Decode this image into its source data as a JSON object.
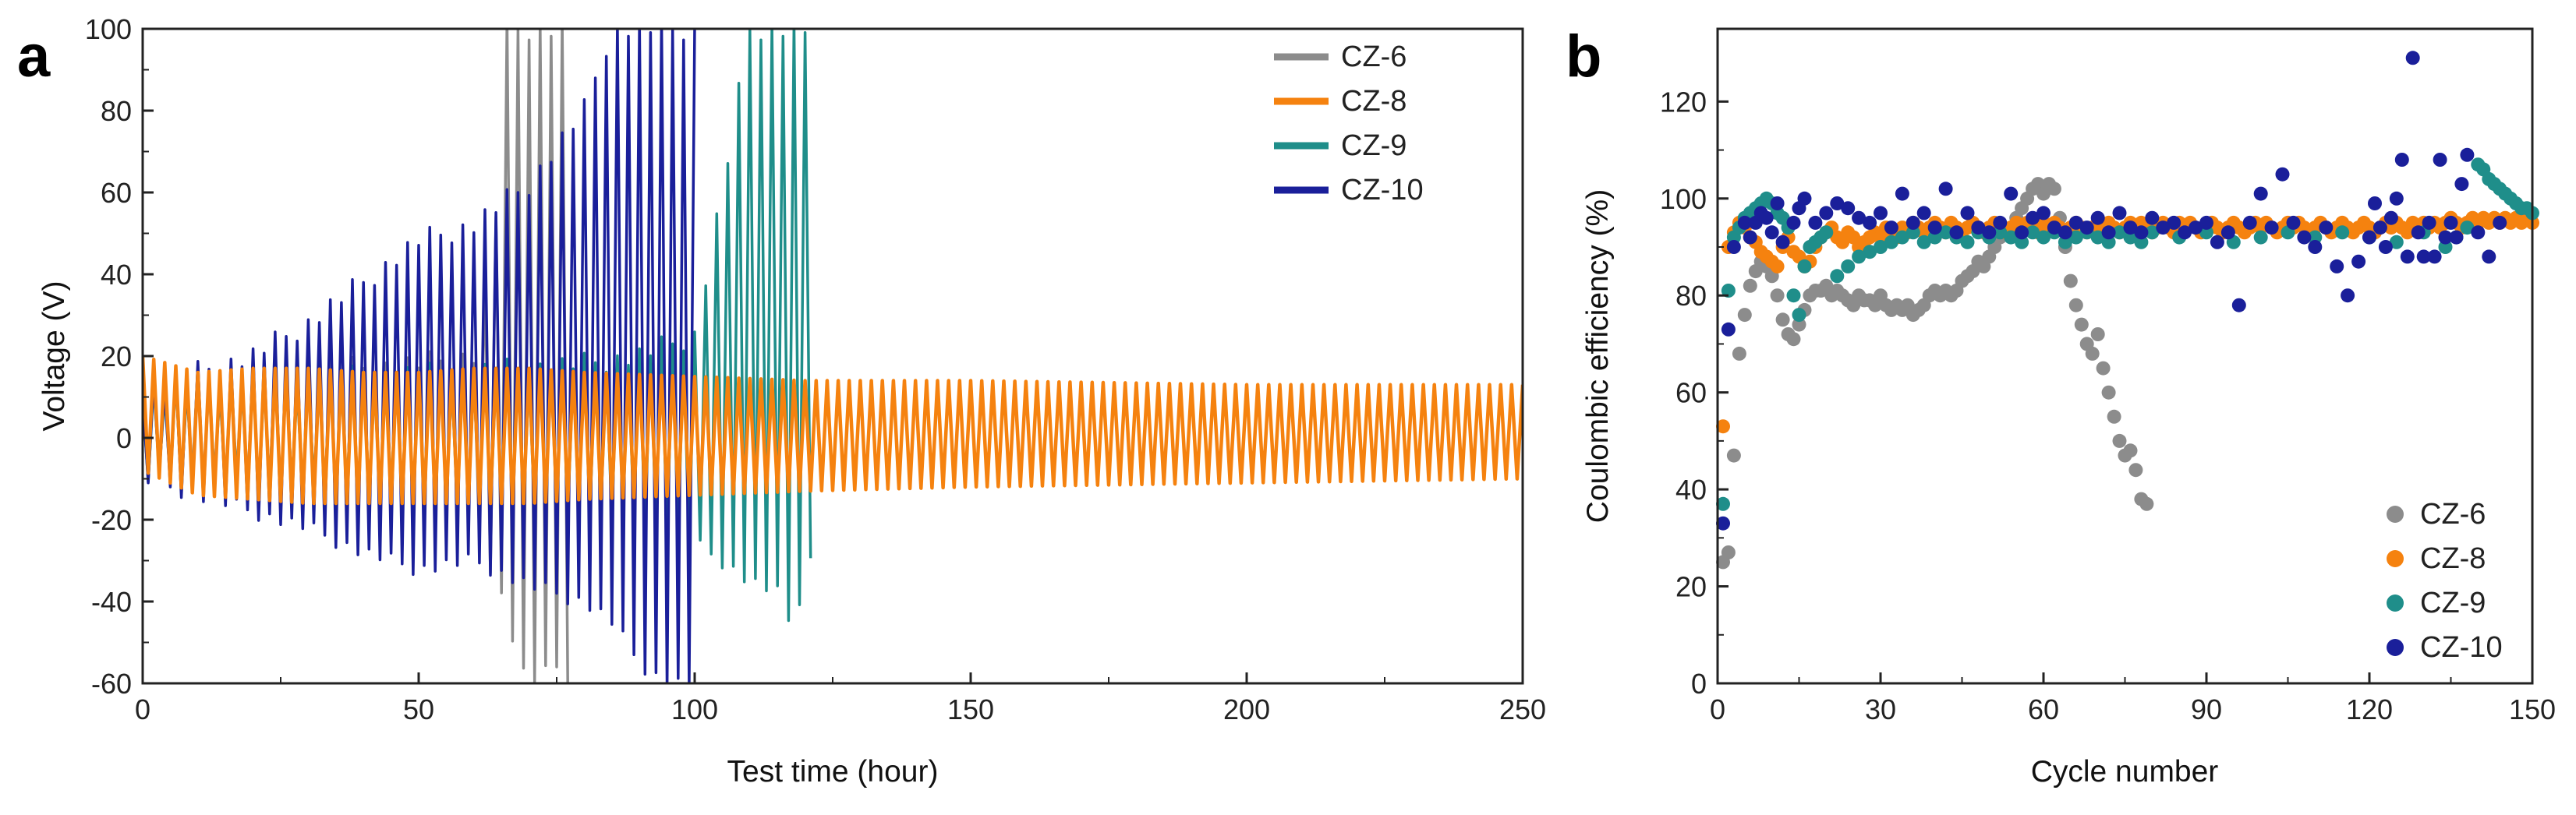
{
  "chart_data": [
    {
      "panel": "a",
      "type": "line",
      "title": "",
      "xlabel": "Test time (hour)",
      "ylabel": "Voltage (V)",
      "xlim": [
        0,
        250
      ],
      "ylim": [
        -60,
        100
      ],
      "xticks": [
        0,
        50,
        100,
        150,
        200,
        250
      ],
      "yticks": [
        -60,
        -40,
        -20,
        0,
        20,
        40,
        60,
        80,
        100
      ],
      "grid": false,
      "legend": "top-right",
      "series": [
        {
          "name": "CZ-6",
          "color": "#8c8c8c",
          "t": [
            0,
            10,
            20,
            30,
            40,
            50,
            60,
            64,
            66,
            68,
            70,
            72,
            74,
            76,
            77
          ],
          "upper": [
            14,
            15,
            16,
            17,
            17,
            18,
            20,
            55,
            100,
            100,
            100,
            100,
            100,
            100,
            100
          ],
          "lower": [
            -8,
            -10,
            -12,
            -14,
            -15,
            -16,
            -20,
            -35,
            -42,
            -55,
            -60,
            -58,
            -57,
            -55,
            -58
          ],
          "period_h": 2.0,
          "end_h": 77
        },
        {
          "name": "CZ-8",
          "color": "#f5820f",
          "t": [
            0,
            10,
            20,
            30,
            40,
            50,
            60,
            70,
            80,
            100,
            120,
            150,
            200,
            250
          ],
          "upper": [
            20,
            16,
            17,
            17,
            16,
            16,
            17,
            17,
            16,
            15,
            14,
            14,
            13,
            13
          ],
          "lower": [
            -8,
            -14,
            -15,
            -16,
            -16,
            -16,
            -16,
            -16,
            -15,
            -14,
            -13,
            -12,
            -11,
            -10
          ],
          "period_h": 2.0,
          "end_h": 250
        },
        {
          "name": "CZ-9",
          "color": "#1f8e8a",
          "t": [
            0,
            20,
            40,
            60,
            80,
            90,
            100,
            105,
            110,
            115,
            118,
            120,
            121
          ],
          "upper": [
            12,
            14,
            15,
            16,
            18,
            20,
            25,
            60,
            100,
            100,
            100,
            100,
            100
          ],
          "lower": [
            -10,
            -12,
            -14,
            -16,
            -18,
            -20,
            -26,
            -30,
            -35,
            -38,
            -48,
            -30,
            -30
          ],
          "period_h": 2.0,
          "end_h": 121
        },
        {
          "name": "CZ-10",
          "color": "#1a1f9a",
          "t": [
            0,
            10,
            20,
            30,
            40,
            50,
            60,
            70,
            80,
            85,
            90,
            95,
            100
          ],
          "upper": [
            13,
            16,
            20,
            28,
            38,
            48,
            52,
            62,
            80,
            100,
            100,
            100,
            100
          ],
          "lower": [
            -10,
            -14,
            -18,
            -22,
            -28,
            -32,
            -30,
            -36,
            -40,
            -45,
            -55,
            -60,
            -60
          ],
          "period_h": 2.0,
          "end_h": 100
        }
      ]
    },
    {
      "panel": "b",
      "type": "scatter",
      "title": "",
      "xlabel": "Cycle number",
      "ylabel": "Coulombic efficiency (%)",
      "xlim": [
        0,
        150
      ],
      "ylim": [
        0,
        135
      ],
      "xticks": [
        0,
        30,
        60,
        90,
        120,
        150
      ],
      "yticks": [
        0,
        20,
        40,
        60,
        80,
        100,
        120
      ],
      "grid": false,
      "legend": "bottom-right",
      "series": [
        {
          "name": "CZ-6",
          "color": "#8c8c8c",
          "x": [
            1,
            2,
            3,
            4,
            5,
            6,
            7,
            8,
            9,
            10,
            11,
            12,
            13,
            14,
            15,
            16,
            17,
            18,
            19,
            20,
            21,
            22,
            23,
            24,
            25,
            26,
            27,
            28,
            29,
            30,
            31,
            32,
            33,
            34,
            35,
            36,
            37,
            38,
            39,
            40,
            41,
            42,
            43,
            44,
            45,
            46,
            47,
            48,
            49,
            50,
            51,
            52,
            53,
            54,
            55,
            56,
            57,
            58,
            59,
            60,
            61,
            62,
            63,
            64,
            65,
            66,
            67,
            68,
            69,
            70,
            71,
            72,
            73,
            74,
            75,
            76,
            77,
            78,
            79
          ],
          "y": [
            25,
            27,
            47,
            68,
            76,
            82,
            85,
            87,
            86,
            84,
            80,
            75,
            72,
            71,
            74,
            77,
            80,
            81,
            81,
            82,
            80,
            81,
            80,
            79,
            78,
            80,
            79,
            79,
            78,
            80,
            78,
            77,
            78,
            77,
            78,
            76,
            77,
            78,
            80,
            81,
            80,
            81,
            80,
            81,
            83,
            84,
            85,
            87,
            86,
            88,
            90,
            92,
            93,
            94,
            96,
            98,
            100,
            102,
            103,
            101,
            103,
            102,
            96,
            90,
            83,
            78,
            74,
            70,
            68,
            72,
            65,
            60,
            55,
            50,
            47,
            48,
            44,
            38,
            37
          ]
        },
        {
          "name": "CZ-8",
          "color": "#f5820f",
          "x": [
            1,
            2,
            3,
            4,
            5,
            6,
            7,
            8,
            9,
            10,
            11,
            12,
            13,
            14,
            15,
            16,
            17,
            18,
            19,
            20,
            21,
            22,
            23,
            24,
            25,
            26,
            27,
            28,
            29,
            30,
            31,
            32,
            33,
            34,
            35,
            36,
            37,
            38,
            39,
            40,
            41,
            42,
            43,
            44,
            45,
            46,
            47,
            48,
            49,
            50,
            51,
            52,
            53,
            54,
            55,
            56,
            57,
            58,
            59,
            60,
            61,
            62,
            63,
            64,
            65,
            66,
            67,
            68,
            69,
            70,
            71,
            72,
            73,
            74,
            75,
            76,
            77,
            78,
            79,
            80,
            81,
            82,
            83,
            84,
            85,
            86,
            87,
            88,
            89,
            90,
            91,
            92,
            93,
            94,
            95,
            96,
            97,
            98,
            99,
            100,
            101,
            102,
            103,
            104,
            105,
            106,
            107,
            108,
            109,
            110,
            111,
            112,
            113,
            114,
            115,
            116,
            117,
            118,
            119,
            120,
            121,
            122,
            123,
            124,
            125,
            126,
            127,
            128,
            129,
            130,
            131,
            132,
            133,
            134,
            135,
            136,
            137,
            138,
            139,
            140,
            141,
            142,
            143,
            144,
            145,
            146,
            147,
            148,
            149,
            150
          ],
          "y": [
            53,
            90,
            93,
            95,
            94,
            92,
            91,
            89,
            88,
            87,
            86,
            90,
            92,
            89,
            88,
            86,
            87,
            90,
            92,
            93,
            94,
            92,
            91,
            93,
            92,
            90,
            91,
            92,
            93,
            92,
            94,
            93,
            92,
            94,
            93,
            95,
            94,
            93,
            94,
            95,
            94,
            93,
            95,
            94,
            93,
            94,
            95,
            94,
            93,
            94,
            95,
            94,
            93,
            94,
            95,
            94,
            95,
            94,
            93,
            95,
            94,
            95,
            94,
            93,
            94,
            95,
            94,
            93,
            94,
            95,
            94,
            95,
            94,
            93,
            94,
            95,
            94,
            95,
            94,
            93,
            94,
            95,
            94,
            93,
            95,
            94,
            95,
            94,
            93,
            94,
            95,
            94,
            93,
            94,
            95,
            94,
            93,
            94,
            95,
            94,
            95,
            94,
            93,
            94,
            95,
            94,
            95,
            94,
            93,
            94,
            95,
            94,
            93,
            94,
            95,
            94,
            93,
            94,
            95,
            94,
            93,
            94,
            95,
            94,
            95,
            94,
            93,
            95,
            94,
            95,
            94,
            95,
            94,
            95,
            96,
            95,
            94,
            95,
            96,
            95,
            96,
            95,
            96,
            95,
            96,
            95,
            96,
            95,
            96,
            95
          ]
        },
        {
          "name": "CZ-9",
          "color": "#1f8e8a",
          "x": [
            1,
            2,
            3,
            4,
            5,
            6,
            7,
            8,
            9,
            10,
            11,
            12,
            13,
            14,
            15,
            16,
            17,
            18,
            19,
            20,
            22,
            24,
            26,
            28,
            30,
            32,
            34,
            36,
            38,
            40,
            42,
            44,
            46,
            48,
            50,
            52,
            54,
            56,
            58,
            60,
            62,
            64,
            66,
            68,
            70,
            72,
            74,
            76,
            78,
            80,
            85,
            90,
            95,
            100,
            105,
            110,
            115,
            120,
            125,
            130,
            134,
            136,
            138,
            140,
            141,
            142,
            143,
            144,
            145,
            146,
            147,
            148,
            149,
            150
          ],
          "y": [
            37,
            81,
            92,
            94,
            96,
            97,
            98,
            99,
            100,
            99,
            97,
            96,
            94,
            80,
            76,
            86,
            90,
            91,
            92,
            93,
            84,
            86,
            88,
            89,
            90,
            91,
            92,
            93,
            91,
            92,
            93,
            92,
            91,
            93,
            92,
            93,
            92,
            91,
            93,
            92,
            93,
            91,
            92,
            93,
            92,
            91,
            93,
            92,
            91,
            93,
            92,
            93,
            91,
            92,
            93,
            92,
            93,
            92,
            91,
            93,
            90,
            92,
            94,
            107,
            106,
            104,
            103,
            102,
            101,
            100,
            99,
            98,
            98,
            97
          ]
        },
        {
          "name": "CZ-10",
          "color": "#1a1f9a",
          "x": [
            1,
            2,
            3,
            5,
            6,
            7,
            8,
            9,
            10,
            11,
            12,
            14,
            15,
            16,
            18,
            20,
            22,
            24,
            26,
            28,
            30,
            32,
            34,
            36,
            38,
            40,
            42,
            44,
            46,
            48,
            50,
            52,
            54,
            56,
            58,
            60,
            62,
            64,
            66,
            68,
            70,
            72,
            74,
            76,
            78,
            80,
            82,
            84,
            86,
            88,
            90,
            92,
            94,
            96,
            98,
            100,
            102,
            104,
            106,
            108,
            110,
            112,
            114,
            116,
            118,
            120,
            121,
            122,
            123,
            124,
            125,
            126,
            127,
            128,
            129,
            130,
            131,
            132,
            133,
            134,
            135,
            136,
            137,
            138,
            140,
            142,
            144
          ],
          "y": [
            33,
            73,
            90,
            95,
            92,
            95,
            97,
            96,
            93,
            99,
            91,
            95,
            98,
            100,
            95,
            97,
            99,
            98,
            96,
            95,
            97,
            94,
            101,
            95,
            97,
            94,
            102,
            93,
            97,
            94,
            93,
            95,
            101,
            93,
            96,
            97,
            94,
            93,
            95,
            94,
            96,
            93,
            97,
            94,
            93,
            96,
            94,
            95,
            93,
            94,
            95,
            91,
            93,
            78,
            95,
            101,
            94,
            105,
            95,
            92,
            90,
            94,
            86,
            80,
            87,
            92,
            99,
            94,
            90,
            96,
            100,
            108,
            88,
            129,
            93,
            88,
            95,
            88,
            108,
            92,
            95,
            92,
            103,
            109,
            93,
            88,
            95
          ]
        }
      ]
    }
  ]
}
